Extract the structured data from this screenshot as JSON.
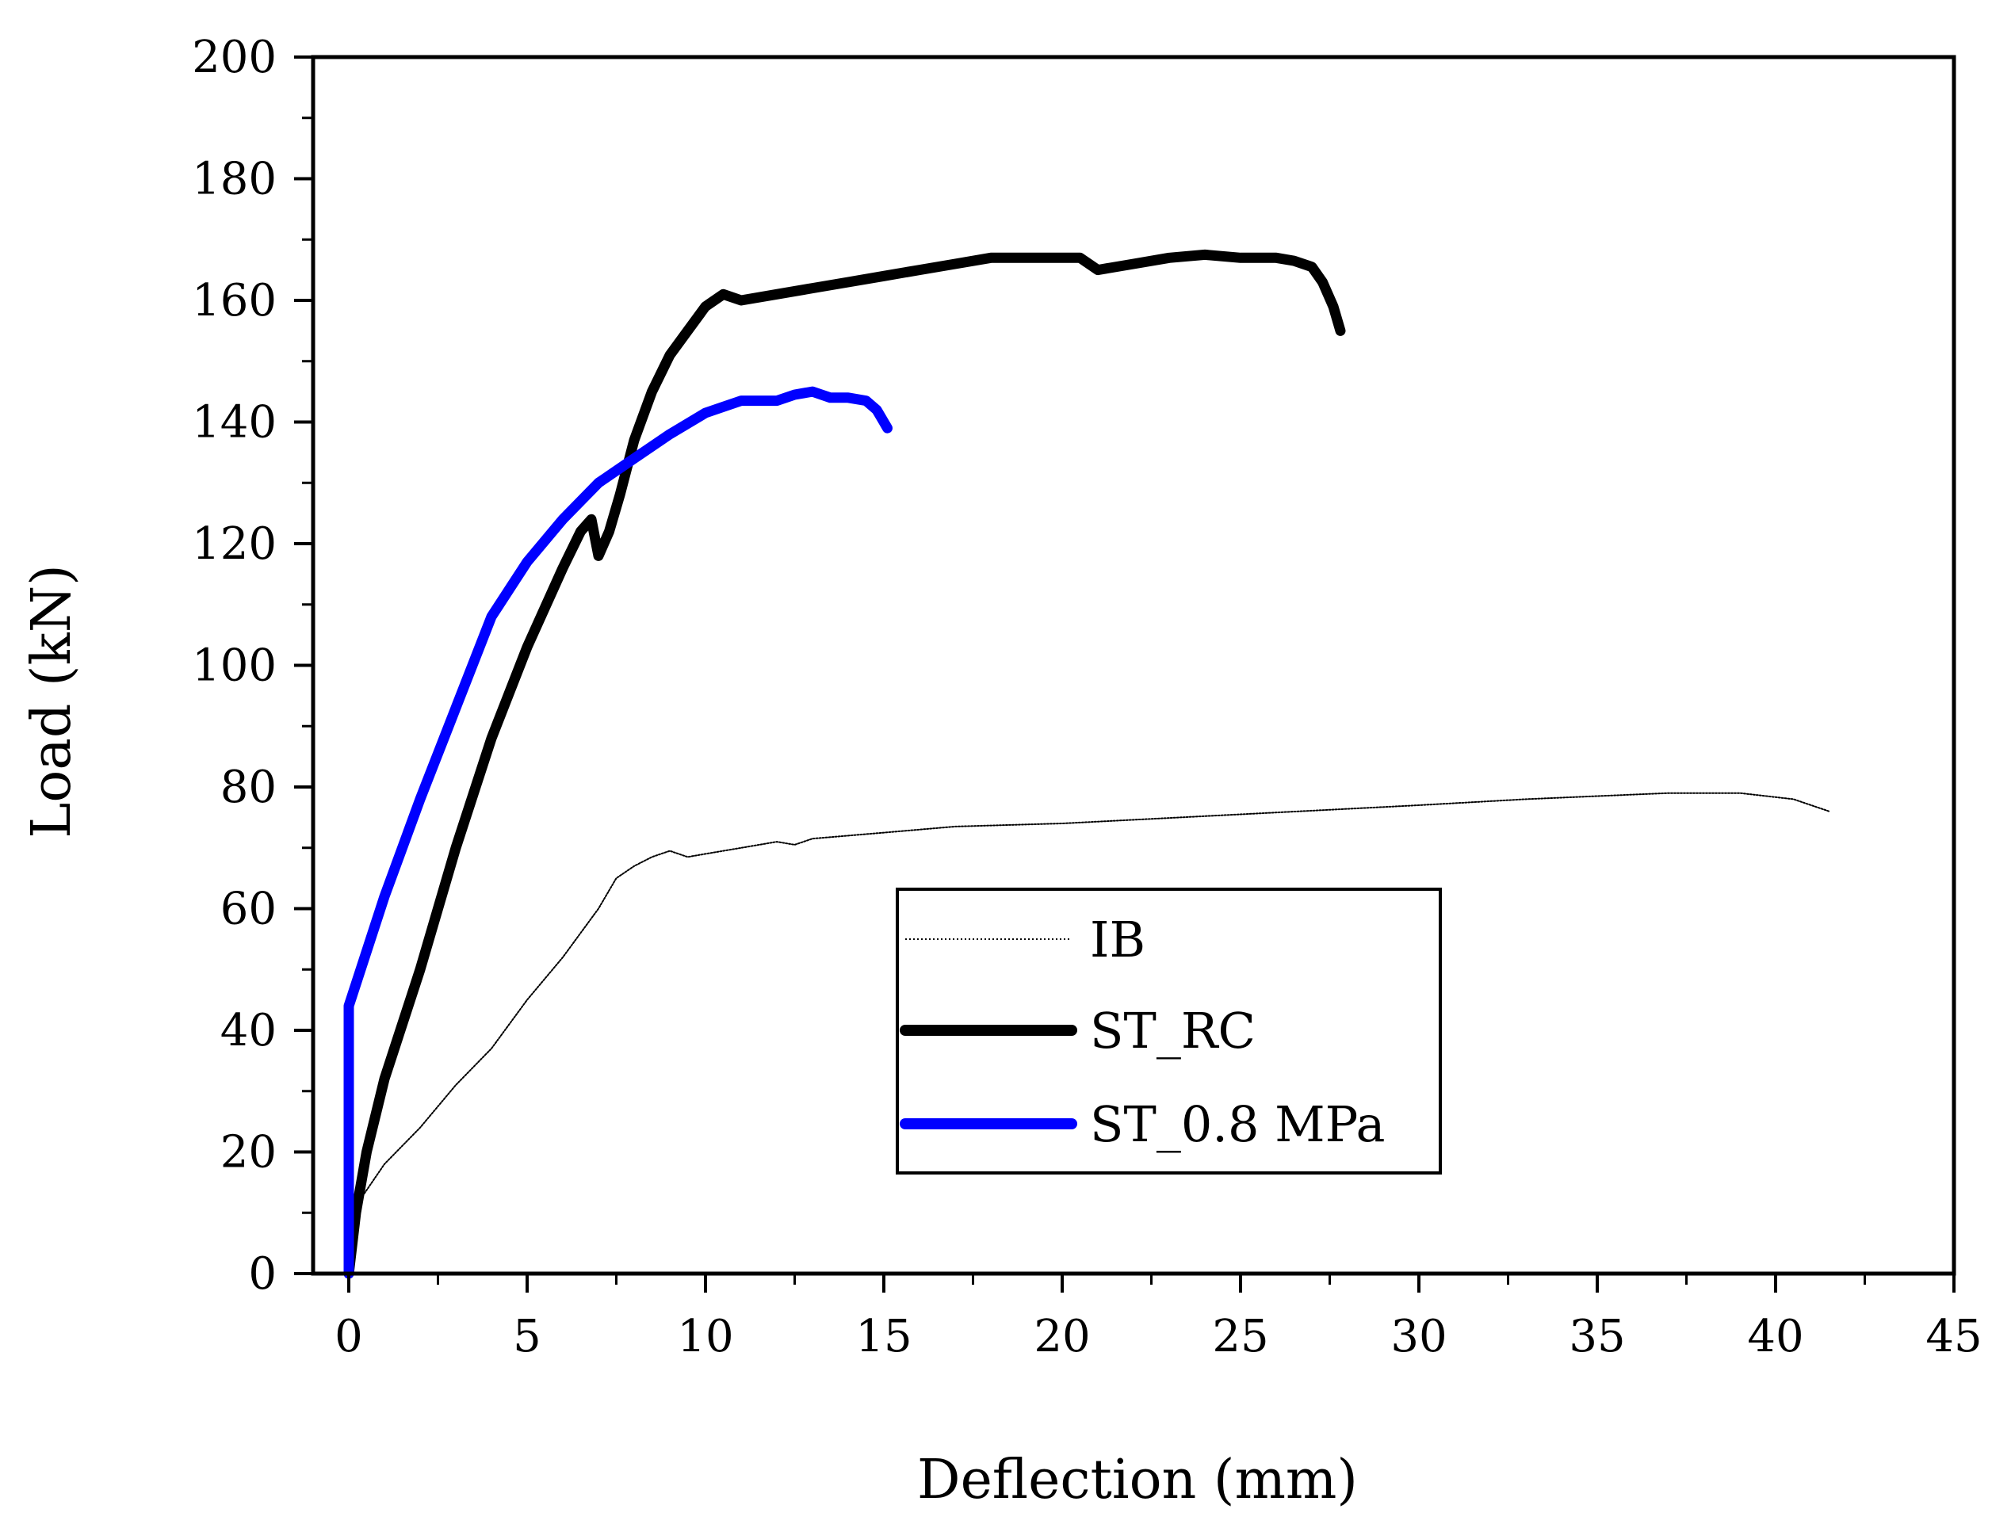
{
  "chart_data": {
    "type": "line",
    "title": "",
    "xlabel": "Deflection (mm)",
    "ylabel": "Load (kN)",
    "xlim": [
      -1,
      45
    ],
    "ylim": [
      0,
      200
    ],
    "xticks": [
      0,
      5,
      10,
      15,
      20,
      25,
      30,
      35,
      40,
      45
    ],
    "yticks": [
      0,
      20,
      40,
      60,
      80,
      100,
      120,
      140,
      160,
      180,
      200
    ],
    "xtick_labels": [
      "0",
      "5",
      "10",
      "15",
      "20",
      "25",
      "30",
      "35",
      "40",
      "45"
    ],
    "ytick_labels": [
      "0",
      "20",
      "40",
      "60",
      "80",
      "100",
      "120",
      "140",
      "160",
      "180",
      "200"
    ],
    "grid": false,
    "legend_position": "center-right inside plot",
    "series": [
      {
        "name": "IB",
        "color": "#000000",
        "style": "dotted-thin",
        "x": [
          0,
          0.3,
          1,
          2,
          3,
          4,
          5,
          6,
          7,
          7.5,
          8,
          8.5,
          9,
          9.5,
          10,
          11,
          12,
          12.5,
          13,
          15,
          17,
          20,
          25,
          30,
          33,
          35,
          37,
          39,
          40.5,
          41.5
        ],
        "y": [
          0,
          12,
          18,
          24,
          31,
          37,
          45,
          52,
          60,
          65,
          67,
          68.5,
          69.5,
          68.5,
          69,
          70,
          71,
          70.5,
          71.5,
          72.5,
          73.5,
          74,
          75.5,
          77,
          78,
          78.5,
          79,
          79,
          78,
          76
        ]
      },
      {
        "name": "ST_RC",
        "color": "#000000",
        "style": "thick",
        "x": [
          0,
          0.2,
          0.5,
          1,
          2,
          3,
          4,
          5,
          6,
          6.5,
          6.8,
          7,
          7.3,
          7.6,
          8,
          8.5,
          9,
          9.5,
          10,
          10.5,
          11,
          12,
          13,
          14,
          15,
          16,
          17,
          18,
          19,
          20,
          20.5,
          21,
          22,
          23,
          24,
          25,
          26,
          26.5,
          27,
          27.3,
          27.6,
          27.8
        ],
        "y": [
          0,
          10,
          20,
          32,
          50,
          70,
          88,
          103,
          116,
          122,
          124,
          118,
          122,
          128,
          137,
          145,
          151,
          155,
          159,
          161,
          160,
          161,
          162,
          163,
          164,
          165,
          166,
          167,
          167,
          167,
          167,
          165,
          166,
          167,
          167.5,
          167,
          167,
          166.5,
          165.5,
          163,
          159,
          155
        ]
      },
      {
        "name": "ST_0.8 MPa",
        "color": "#0000ff",
        "style": "thick",
        "x": [
          0,
          0,
          1,
          2,
          3,
          4,
          5,
          6,
          7,
          8,
          9,
          10,
          11,
          12,
          12.5,
          13,
          13.5,
          14,
          14.5,
          14.8,
          15,
          15.1
        ],
        "y": [
          0,
          44,
          62,
          78,
          93,
          108,
          117,
          124,
          130,
          134,
          138,
          141.5,
          143.5,
          143.5,
          144.5,
          145,
          144,
          144,
          143.5,
          142,
          140,
          139
        ]
      }
    ]
  }
}
